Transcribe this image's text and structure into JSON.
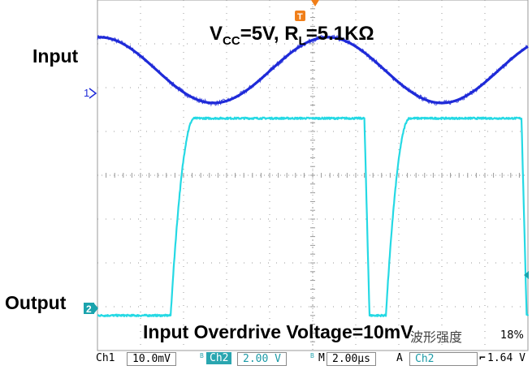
{
  "annotations": {
    "condition": "VCC=5V, RL=5.1KΩ",
    "condition_parts": {
      "v": "V",
      "cc": "CC",
      "mid": "=5V, ",
      "r": "R",
      "l": "L",
      "end": "=5.1KΩ"
    },
    "input_label": "Input",
    "output_label": "Output",
    "overdrive": "Input Overdrive Voltage=10mV",
    "watermark": "波形强度",
    "watermark_pct": "18%"
  },
  "status_bar": {
    "ch1_label": "Ch1",
    "ch1_scale": "10.0mV",
    "bw1": "B",
    "ch2_label": "Ch2",
    "ch2_scale": "2.00 V",
    "bw2": "B",
    "time_label": "M",
    "time_scale": "2.00µs",
    "trigger_mode": "A",
    "trigger_source": "Ch2",
    "trigger_slope": "⌐",
    "trigger_level": "1.64 V"
  },
  "markers": {
    "ch1": "1",
    "ch2": "2",
    "trigger": "T"
  },
  "colors": {
    "input": "#1f2bd8",
    "output": "#25d9e4",
    "grid": "#9a9a9a",
    "marker_ch1": "#1f2bd8",
    "marker_ch2": "#1aa3ad",
    "trigger": "#f07f1a"
  },
  "chart_data": {
    "type": "line",
    "x_unit": "div",
    "x_range": [
      0,
      10
    ],
    "y_unit": "div",
    "y_range": [
      -4,
      4
    ],
    "grid": true,
    "series": [
      {
        "name": "Input",
        "shape": "sine",
        "period_div": 5.3,
        "amplitude_div": 0.75,
        "center_div": 2.4,
        "first_peak_div": 0.05,
        "noise_div": 0.06
      },
      {
        "name": "Output",
        "shape": "square",
        "high_div": 1.3,
        "low_div": -3.2,
        "edges": [
          {
            "x": 1.7,
            "dir": "rise",
            "width": 0.55
          },
          {
            "x": 6.2,
            "dir": "fall",
            "width": 0.12
          },
          {
            "x": 6.7,
            "dir": "rise",
            "width": 0.55
          },
          {
            "x": 9.85,
            "dir": "fall",
            "width": 0.12
          }
        ],
        "noise_div": 0.02
      }
    ]
  }
}
